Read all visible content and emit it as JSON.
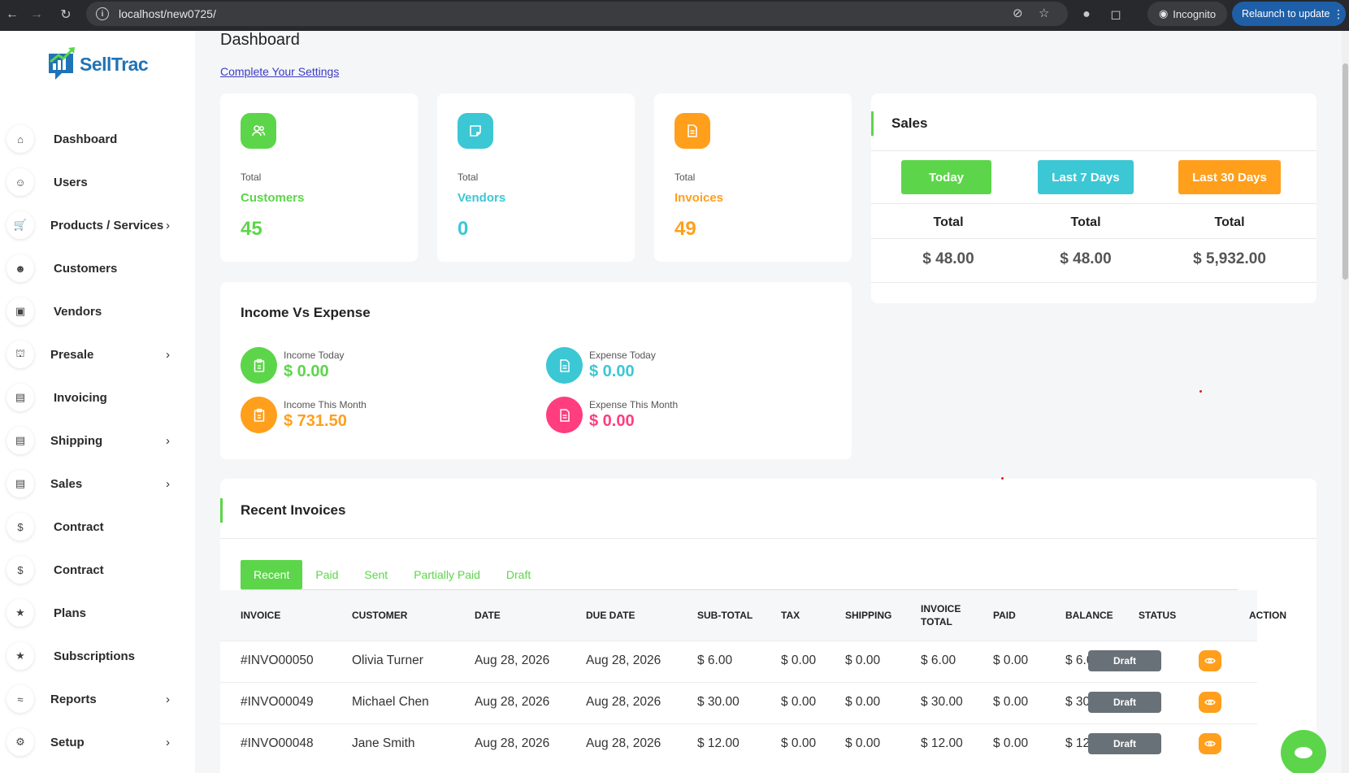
{
  "browser": {
    "url": "localhost/new0725/",
    "incognito_label": "Incognito",
    "relaunch_label": "Relaunch to update"
  },
  "brand": {
    "name": "SellTrac"
  },
  "sidebar": {
    "items": [
      {
        "label": "Dashboard",
        "icon": "home-icon",
        "chevron": false
      },
      {
        "label": "Users",
        "icon": "users-icon",
        "chevron": false
      },
      {
        "label": "Products / Services",
        "icon": "cart-icon",
        "chevron": true
      },
      {
        "label": "Customers",
        "icon": "user-plus-icon",
        "chevron": false
      },
      {
        "label": "Vendors",
        "icon": "note-icon",
        "chevron": false
      },
      {
        "label": "Presale",
        "icon": "bank-icon",
        "chevron": true
      },
      {
        "label": "Invoicing",
        "icon": "file-icon",
        "chevron": false
      },
      {
        "label": "Shipping",
        "icon": "file-icon",
        "chevron": true
      },
      {
        "label": "Sales",
        "icon": "file-icon",
        "chevron": true
      },
      {
        "label": "Contract",
        "icon": "coins-icon",
        "chevron": false
      },
      {
        "label": "Contract",
        "icon": "coins-icon",
        "chevron": false
      },
      {
        "label": "Plans",
        "icon": "trophy-icon",
        "chevron": false
      },
      {
        "label": "Subscriptions",
        "icon": "trophy-icon",
        "chevron": false
      },
      {
        "label": "Reports",
        "icon": "chart-icon",
        "chevron": true
      },
      {
        "label": "Setup",
        "icon": "gear-icon",
        "chevron": true
      }
    ]
  },
  "header": {
    "title": "Dashboard",
    "settings_link": "Complete Your Settings"
  },
  "stats": [
    {
      "total": "Total",
      "name": "Customers",
      "value": "45",
      "color": "#5dd54a",
      "icon": "users-icon"
    },
    {
      "total": "Total",
      "name": "Vendors",
      "value": "0",
      "color": "#3cc7d4",
      "icon": "note-icon"
    },
    {
      "total": "Total",
      "name": "Invoices",
      "value": "49",
      "color": "#ff9f1c",
      "icon": "file-icon"
    }
  ],
  "sales": {
    "title": "Sales",
    "buttons": [
      {
        "label": "Today",
        "color": "#5dd54a"
      },
      {
        "label": "Last 7 Days",
        "color": "#3cc7d4"
      },
      {
        "label": "Last 30 Days",
        "color": "#ff9f1c"
      }
    ],
    "col_header": "Total",
    "values": [
      "$ 48.00",
      "$ 48.00",
      "$ 5,932.00"
    ]
  },
  "income_expense": {
    "title": "Income Vs Expense",
    "items": [
      {
        "label": "Income Today",
        "value": "$ 0.00",
        "color": "#5dd54a"
      },
      {
        "label": "Expense Today",
        "value": "$ 0.00",
        "color": "#3cc7d4"
      },
      {
        "label": "Income This Month",
        "value": "$ 731.50",
        "color": "#ff9f1c"
      },
      {
        "label": "Expense This Month",
        "value": "$ 0.00",
        "color": "#ff3d7f"
      }
    ]
  },
  "recent_invoices": {
    "title": "Recent Invoices",
    "tabs": [
      "Recent",
      "Paid",
      "Sent",
      "Partially Paid",
      "Draft"
    ],
    "columns": [
      "INVOICE",
      "CUSTOMER",
      "DATE",
      "DUE DATE",
      "SUB-TOTAL",
      "TAX",
      "SHIPPING",
      "INVOICE TOTAL",
      "PAID",
      "BALANCE",
      "STATUS",
      "ACTION"
    ],
    "rows": [
      {
        "invoice": "#INVO00050",
        "customer": "Olivia Turner",
        "date": "Aug 28, 2026",
        "due": "Aug 28, 2026",
        "subtotal": "$ 6.00",
        "tax": "$ 0.00",
        "shipping": "$ 0.00",
        "total": "$ 6.00",
        "paid": "$ 0.00",
        "balance": "$ 6.00",
        "status": "Draft"
      },
      {
        "invoice": "#INVO00049",
        "customer": "Michael Chen",
        "date": "Aug 28, 2026",
        "due": "Aug 28, 2026",
        "subtotal": "$ 30.00",
        "tax": "$ 0.00",
        "shipping": "$ 0.00",
        "total": "$ 30.00",
        "paid": "$ 0.00",
        "balance": "$ 30.00",
        "status": "Draft"
      },
      {
        "invoice": "#INVO00048",
        "customer": "Jane Smith",
        "date": "Aug 28, 2026",
        "due": "Aug 28, 2026",
        "subtotal": "$ 12.00",
        "tax": "$ 0.00",
        "shipping": "$ 0.00",
        "total": "$ 12.00",
        "paid": "$ 0.00",
        "balance": "$ 12.00",
        "status": "Draft"
      }
    ]
  }
}
